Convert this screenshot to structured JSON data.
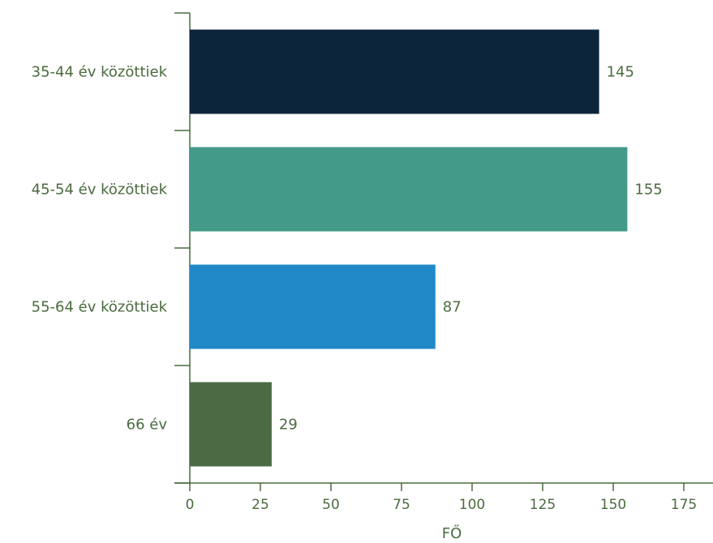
{
  "chart_data": {
    "type": "bar",
    "orientation": "horizontal",
    "categories": [
      "35-44 év közöttiek",
      "45-54 év közöttiek",
      "55-64 év közöttiek",
      "66 év"
    ],
    "values": [
      145,
      155,
      87,
      29
    ],
    "colors": [
      "#0d253a",
      "#449a89",
      "#2189c8",
      "#4b6b45"
    ],
    "text_color": "#4a6b3f",
    "xlabel": "FŐ",
    "ylabel": "",
    "xlim": [
      0,
      175
    ],
    "xticks": [
      0,
      25,
      50,
      75,
      100,
      125,
      150,
      175
    ],
    "grid": false,
    "legend": "none"
  }
}
